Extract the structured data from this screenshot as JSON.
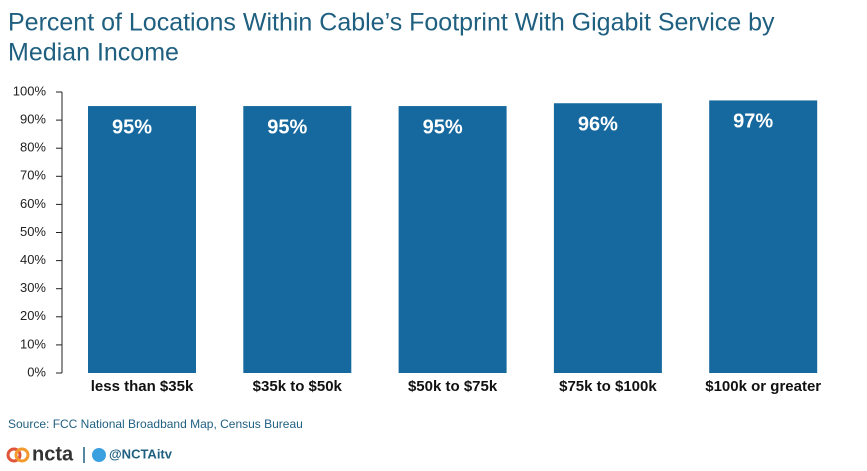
{
  "chart_data": {
    "type": "bar",
    "title": "Percent of Locations Within Cable’s Footprint With Gigabit Service by Median Income",
    "categories": [
      "less than $35k",
      "$35k to $50k",
      "$50k to $75k",
      "$75k to $100k",
      "$100k or greater"
    ],
    "values": [
      95,
      95,
      95,
      96,
      97
    ],
    "value_labels": [
      "95%",
      "95%",
      "95%",
      "96%",
      "97%"
    ],
    "color": "#16699e",
    "ylim": [
      0,
      100
    ],
    "yticks": [
      {
        "value": 0,
        "label": "0%"
      },
      {
        "value": 10,
        "label": "10%"
      },
      {
        "value": 20,
        "label": "20%"
      },
      {
        "value": 30,
        "label": "30%"
      },
      {
        "value": 40,
        "label": "40%"
      },
      {
        "value": 50,
        "label": "50%"
      },
      {
        "value": 60,
        "label": "60%"
      },
      {
        "value": 70,
        "label": "70%"
      },
      {
        "value": 80,
        "label": "80%"
      },
      {
        "value": 90,
        "label": "90%"
      },
      {
        "value": 100,
        "label": "100%"
      }
    ],
    "source": "Source: FCC National Broadband Map, Census Bureau"
  },
  "footer": {
    "brand": "ncta",
    "handle": "@NCTAitv"
  }
}
